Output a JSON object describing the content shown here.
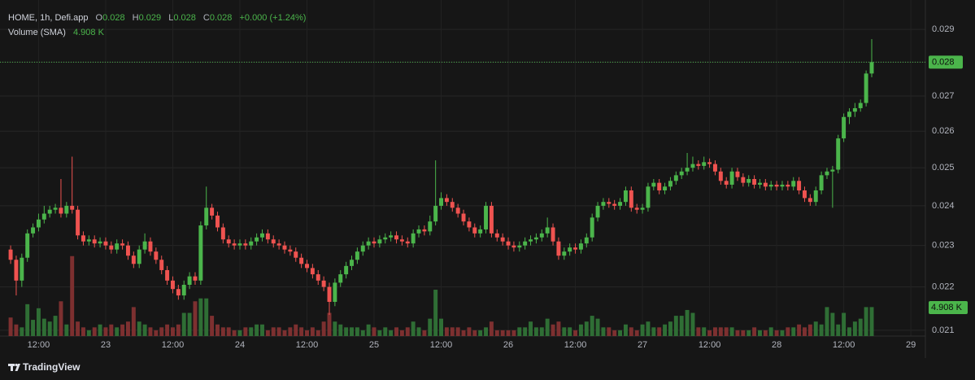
{
  "chart_data": {
    "type": "candlestick",
    "symbol": "HOME, 1h, Defi.app",
    "ohlc_legend": [
      {
        "label": "O",
        "value": "0.028"
      },
      {
        "label": "H",
        "value": "0.029"
      },
      {
        "label": "L",
        "value": "0.028"
      },
      {
        "label": "C",
        "value": "0.028"
      }
    ],
    "change": "+0.000 (+1.24%)",
    "volume_title": "Volume (SMA)",
    "volume_sma": 4.908,
    "volume_sma_label": "4.908 K",
    "last_price": 0.028,
    "open": [
      0.0229,
      0.02265,
      0.02215,
      0.0227,
      0.0233,
      0.02345,
      0.02365,
      0.0238,
      0.0239,
      0.02395,
      0.0238,
      0.024,
      0.0239,
      0.02325,
      0.0231,
      0.02315,
      0.02305,
      0.0231,
      0.023,
      0.0229,
      0.02305,
      0.023,
      0.02275,
      0.02255,
      0.0229,
      0.0231,
      0.02285,
      0.02265,
      0.0224,
      0.02215,
      0.02195,
      0.0218,
      0.02205,
      0.02225,
      0.02215,
      0.0235,
      0.02395,
      0.02375,
      0.02345,
      0.02315,
      0.02305,
      0.023,
      0.02305,
      0.023,
      0.0231,
      0.0232,
      0.0233,
      0.02315,
      0.02305,
      0.023,
      0.0229,
      0.02285,
      0.0227,
      0.02255,
      0.02245,
      0.0223,
      0.02215,
      0.022,
      0.02165,
      0.0221,
      0.0223,
      0.0225,
      0.02265,
      0.02285,
      0.023,
      0.0231,
      0.02305,
      0.02315,
      0.0232,
      0.02325,
      0.02315,
      0.0231,
      0.02305,
      0.0233,
      0.0234,
      0.02335,
      0.0236,
      0.024,
      0.0242,
      0.0241,
      0.02395,
      0.0238,
      0.0236,
      0.02345,
      0.0233,
      0.0234,
      0.024,
      0.0233,
      0.0232,
      0.0231,
      0.023,
      0.02295,
      0.023,
      0.0231,
      0.02315,
      0.0232,
      0.0233,
      0.02345,
      0.0231,
      0.02275,
      0.02285,
      0.02295,
      0.0229,
      0.02305,
      0.0232,
      0.0237,
      0.024,
      0.0241,
      0.02405,
      0.024,
      0.0241,
      0.0244,
      0.02395,
      0.0239,
      0.02395,
      0.0245,
      0.0246,
      0.0244,
      0.0245,
      0.02465,
      0.0248,
      0.0249,
      0.025,
      0.0251,
      0.02505,
      0.02515,
      0.0251,
      0.0249,
      0.02465,
      0.02455,
      0.0249,
      0.02475,
      0.0246,
      0.0247,
      0.02455,
      0.0246,
      0.0245,
      0.02455,
      0.0245,
      0.02455,
      0.0245,
      0.02465,
      0.0244,
      0.0242,
      0.0241,
      0.0244,
      0.0248,
      0.0249,
      0.02495,
      0.0258,
      0.0264,
      0.02655,
      0.02665,
      0.0268,
      0.02766
    ],
    "high": [
      0.023,
      0.02275,
      0.0228,
      0.0234,
      0.02355,
      0.0238,
      0.024,
      0.024,
      0.02405,
      0.0247,
      0.0241,
      0.0253,
      0.024,
      0.02335,
      0.02325,
      0.02325,
      0.0232,
      0.0232,
      0.0231,
      0.02315,
      0.02315,
      0.0231,
      0.02285,
      0.023,
      0.0233,
      0.0232,
      0.02295,
      0.02275,
      0.0225,
      0.02225,
      0.02205,
      0.02215,
      0.02235,
      0.02235,
      0.0236,
      0.0245,
      0.02405,
      0.02385,
      0.02355,
      0.02325,
      0.02315,
      0.02315,
      0.02315,
      0.0232,
      0.0233,
      0.0234,
      0.0234,
      0.02325,
      0.02315,
      0.0231,
      0.023,
      0.02295,
      0.0228,
      0.02265,
      0.02255,
      0.0224,
      0.02225,
      0.0221,
      0.0222,
      0.0224,
      0.0226,
      0.02275,
      0.02295,
      0.0231,
      0.0232,
      0.0232,
      0.02325,
      0.0233,
      0.02335,
      0.02335,
      0.02325,
      0.0232,
      0.0234,
      0.0235,
      0.0235,
      0.02375,
      0.0252,
      0.02435,
      0.0243,
      0.0242,
      0.02405,
      0.0239,
      0.0237,
      0.02355,
      0.0235,
      0.0241,
      0.0241,
      0.0234,
      0.0233,
      0.0232,
      0.0231,
      0.0231,
      0.0232,
      0.02325,
      0.0233,
      0.0234,
      0.0237,
      0.02355,
      0.0232,
      0.02295,
      0.02305,
      0.02305,
      0.02315,
      0.0233,
      0.0238,
      0.0241,
      0.0242,
      0.0242,
      0.02415,
      0.0242,
      0.0245,
      0.0245,
      0.02405,
      0.02405,
      0.0246,
      0.0247,
      0.0247,
      0.0246,
      0.02475,
      0.0249,
      0.025,
      0.0254,
      0.0253,
      0.0252,
      0.0253,
      0.02525,
      0.0252,
      0.025,
      0.02475,
      0.025,
      0.025,
      0.02485,
      0.0248,
      0.0248,
      0.0247,
      0.0247,
      0.02465,
      0.02465,
      0.02465,
      0.02465,
      0.02475,
      0.02475,
      0.0245,
      0.0243,
      0.0245,
      0.0249,
      0.025,
      0.02505,
      0.0259,
      0.0265,
      0.02665,
      0.0268,
      0.0269,
      0.02775,
      0.0287
    ],
    "low": [
      0.02255,
      0.0218,
      0.022,
      0.0226,
      0.0232,
      0.02335,
      0.02355,
      0.0237,
      0.0238,
      0.0237,
      0.0237,
      0.0238,
      0.02315,
      0.023,
      0.023,
      0.02295,
      0.02295,
      0.0229,
      0.0228,
      0.0228,
      0.0229,
      0.02265,
      0.02245,
      0.02245,
      0.0228,
      0.02275,
      0.02255,
      0.0223,
      0.02205,
      0.02185,
      0.0217,
      0.0217,
      0.02195,
      0.02205,
      0.02205,
      0.0234,
      0.02365,
      0.02335,
      0.02305,
      0.02295,
      0.0229,
      0.0229,
      0.0229,
      0.0229,
      0.023,
      0.0231,
      0.02305,
      0.02295,
      0.0229,
      0.0228,
      0.02275,
      0.0226,
      0.02245,
      0.02235,
      0.0222,
      0.02205,
      0.0219,
      0.02135,
      0.02155,
      0.022,
      0.0222,
      0.0224,
      0.02255,
      0.02275,
      0.0229,
      0.02295,
      0.02295,
      0.02305,
      0.0231,
      0.02305,
      0.023,
      0.02295,
      0.02295,
      0.0232,
      0.02325,
      0.02325,
      0.0235,
      0.0239,
      0.024,
      0.02385,
      0.0237,
      0.0235,
      0.02335,
      0.0232,
      0.0232,
      0.0233,
      0.0232,
      0.0231,
      0.023,
      0.0229,
      0.02285,
      0.02285,
      0.0229,
      0.023,
      0.02305,
      0.0231,
      0.0232,
      0.023,
      0.02265,
      0.02265,
      0.02275,
      0.0228,
      0.0228,
      0.02295,
      0.0231,
      0.0236,
      0.0239,
      0.02395,
      0.0239,
      0.0239,
      0.024,
      0.02385,
      0.0238,
      0.0238,
      0.02385,
      0.0244,
      0.0243,
      0.0243,
      0.0244,
      0.02455,
      0.0247,
      0.0248,
      0.0249,
      0.02495,
      0.02495,
      0.025,
      0.0248,
      0.02455,
      0.02445,
      0.02445,
      0.02465,
      0.0245,
      0.0245,
      0.02445,
      0.02445,
      0.0244,
      0.0244,
      0.0244,
      0.0244,
      0.0244,
      0.0244,
      0.0243,
      0.0241,
      0.024,
      0.024,
      0.0243,
      0.0247,
      0.02395,
      0.02485,
      0.0257,
      0.0262,
      0.0264,
      0.02655,
      0.0267,
      0.02755
    ],
    "close": [
      0.02265,
      0.02215,
      0.0227,
      0.0233,
      0.02345,
      0.02365,
      0.0238,
      0.0239,
      0.02395,
      0.0238,
      0.024,
      0.0239,
      0.02325,
      0.0231,
      0.02315,
      0.02305,
      0.0231,
      0.023,
      0.0229,
      0.02305,
      0.023,
      0.02275,
      0.02255,
      0.0229,
      0.0231,
      0.02285,
      0.02265,
      0.0224,
      0.02215,
      0.02195,
      0.0218,
      0.02205,
      0.02225,
      0.02215,
      0.0235,
      0.02395,
      0.02375,
      0.02345,
      0.02315,
      0.02305,
      0.023,
      0.02305,
      0.023,
      0.0231,
      0.0232,
      0.0233,
      0.02315,
      0.02305,
      0.023,
      0.0229,
      0.02285,
      0.0227,
      0.02255,
      0.02245,
      0.0223,
      0.02215,
      0.022,
      0.02165,
      0.0221,
      0.0223,
      0.0225,
      0.02265,
      0.02285,
      0.023,
      0.0231,
      0.02305,
      0.02315,
      0.0232,
      0.02325,
      0.02315,
      0.0231,
      0.02305,
      0.0233,
      0.0234,
      0.02335,
      0.0236,
      0.024,
      0.0242,
      0.0241,
      0.02395,
      0.0238,
      0.0236,
      0.02345,
      0.0233,
      0.0234,
      0.024,
      0.0233,
      0.0232,
      0.0231,
      0.023,
      0.02295,
      0.023,
      0.0231,
      0.02315,
      0.0232,
      0.0233,
      0.02345,
      0.0231,
      0.02275,
      0.02285,
      0.02295,
      0.0229,
      0.02305,
      0.0232,
      0.0237,
      0.024,
      0.0241,
      0.02405,
      0.024,
      0.0241,
      0.0244,
      0.02395,
      0.0239,
      0.02395,
      0.0245,
      0.0246,
      0.0244,
      0.0245,
      0.02465,
      0.0248,
      0.0249,
      0.025,
      0.0251,
      0.02505,
      0.02515,
      0.0251,
      0.0249,
      0.02465,
      0.02455,
      0.0249,
      0.02475,
      0.0246,
      0.0247,
      0.02455,
      0.0246,
      0.0245,
      0.02455,
      0.0245,
      0.02455,
      0.0245,
      0.02465,
      0.0244,
      0.0242,
      0.0241,
      0.0244,
      0.0248,
      0.0249,
      0.02495,
      0.0258,
      0.0264,
      0.02655,
      0.02665,
      0.0268,
      0.02766,
      0.028
    ],
    "volume": [
      3.2,
      2.0,
      1.5,
      5.5,
      2.8,
      4.8,
      3.0,
      2.5,
      3.5,
      6.0,
      2.0,
      13.8,
      2.5,
      1.5,
      1.0,
      1.5,
      2.0,
      1.5,
      2.0,
      1.5,
      2.0,
      2.5,
      5.0,
      2.5,
      2.0,
      1.5,
      1.0,
      1.5,
      2.0,
      1.5,
      2.0,
      4.0,
      4.0,
      6.0,
      6.5,
      6.5,
      3.5,
      2.0,
      1.5,
      1.5,
      1.0,
      1.0,
      1.5,
      1.5,
      2.0,
      2.0,
      1.0,
      1.5,
      1.5,
      1.0,
      1.5,
      2.0,
      1.5,
      1.0,
      1.5,
      1.0,
      2.5,
      4.0,
      2.5,
      2.0,
      1.5,
      1.5,
      1.5,
      1.0,
      2.0,
      1.5,
      1.0,
      1.5,
      1.0,
      1.5,
      1.0,
      1.5,
      2.5,
      1.5,
      1.0,
      3.0,
      8.0,
      3.0,
      1.5,
      1.5,
      1.5,
      1.0,
      1.5,
      1.0,
      1.0,
      1.5,
      2.5,
      1.0,
      1.0,
      1.0,
      1.0,
      1.5,
      1.5,
      2.5,
      1.5,
      1.5,
      3.0,
      2.0,
      2.5,
      1.5,
      1.5,
      1.0,
      2.0,
      2.5,
      3.5,
      3.0,
      1.5,
      1.5,
      1.0,
      1.0,
      2.0,
      1.5,
      1.0,
      2.0,
      2.5,
      1.5,
      1.5,
      2.0,
      2.5,
      3.5,
      3.5,
      4.5,
      4.0,
      1.5,
      1.5,
      1.0,
      1.5,
      1.5,
      1.5,
      1.5,
      1.0,
      1.0,
      1.0,
      1.5,
      1.0,
      1.0,
      1.5,
      1.0,
      1.0,
      1.5,
      1.5,
      2.0,
      1.5,
      2.0,
      2.5,
      2.0,
      5.0,
      4.0,
      2.0,
      4.0,
      1.5,
      2.5,
      3.0,
      5.0,
      5.0
    ],
    "up_color": "#4bb54b",
    "down_color": "#ef5350",
    "volume_up_color": "#2f6e35",
    "volume_down_color": "#7d3030",
    "ylim": [
      0.02087,
      0.02993
    ],
    "yticks": [
      0.021,
      0.022,
      0.023,
      0.024,
      0.025,
      0.026,
      0.027,
      0.028,
      0.029
    ],
    "log_scale": true,
    "vlim": [
      0,
      58
    ],
    "xlim": [
      -1.9,
      163.6
    ],
    "xticks": [
      {
        "value": 5,
        "label": "12:00"
      },
      {
        "value": 17,
        "label": "23"
      },
      {
        "value": 29,
        "label": "12:00"
      },
      {
        "value": 41,
        "label": "24"
      },
      {
        "value": 53,
        "label": "12:00"
      },
      {
        "value": 65,
        "label": "25"
      },
      {
        "value": 77,
        "label": "12:00"
      },
      {
        "value": 89,
        "label": "26"
      },
      {
        "value": 101,
        "label": "12:00"
      },
      {
        "value": 113,
        "label": "27"
      },
      {
        "value": 125,
        "label": "12:00"
      },
      {
        "value": 137,
        "label": "28"
      },
      {
        "value": 149,
        "label": "12:00"
      },
      {
        "value": 161,
        "label": "29"
      }
    ],
    "grid": true
  },
  "branding": "TradingView"
}
